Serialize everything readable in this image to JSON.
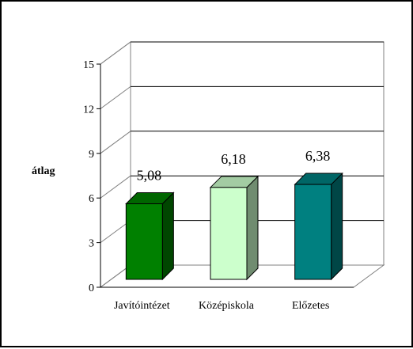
{
  "chart_data": {
    "type": "bar",
    "style": "3d",
    "title": "",
    "xlabel": "",
    "ylabel": "átlag",
    "ylim": [
      0,
      15
    ],
    "yticks": [
      0,
      3,
      6,
      9,
      12,
      15
    ],
    "ytick_labels": [
      "0",
      "3",
      "6",
      "9",
      "12",
      "15"
    ],
    "grid": true,
    "legend": false,
    "categories": [
      "Javítóintézet",
      "Középiskola",
      "Előzetes"
    ],
    "values": [
      5.08,
      6.18,
      6.38
    ],
    "value_labels": [
      "5,08",
      "6,18",
      "6,38"
    ],
    "bar_colors": [
      "#008000",
      "#ccffcc",
      "#008080"
    ]
  }
}
